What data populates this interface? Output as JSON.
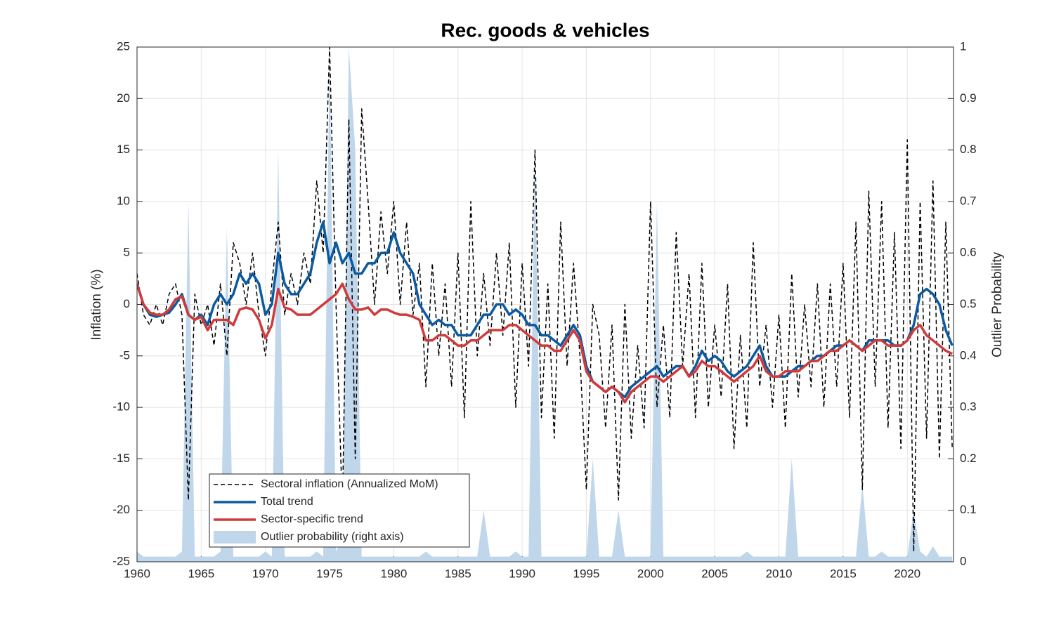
{
  "chart_data": {
    "type": "line",
    "title": "Rec. goods & vehicles",
    "ylabel": "Inflation (%)",
    "y2label": "Outlier Probability",
    "xlim": [
      1960,
      2023.6
    ],
    "xticks": [
      1960,
      1965,
      1970,
      1975,
      1980,
      1985,
      1990,
      1995,
      2000,
      2005,
      2010,
      2015,
      2020
    ],
    "ylim": [
      -25,
      25
    ],
    "yticks": [
      -25,
      -20,
      -15,
      -10,
      -5,
      0,
      5,
      10,
      15,
      20,
      25
    ],
    "y2lim": [
      0,
      1
    ],
    "y2ticks": [
      0,
      0.1,
      0.2,
      0.3,
      0.4,
      0.5,
      0.6,
      0.7,
      0.8,
      0.9,
      1
    ],
    "grid": true,
    "legend": "lower left",
    "x": [
      1960,
      1960.5,
      1961,
      1961.5,
      1962,
      1962.5,
      1963,
      1963.5,
      1964,
      1964.5,
      1965,
      1965.5,
      1966,
      1966.5,
      1967,
      1967.5,
      1968,
      1968.5,
      1969,
      1969.5,
      1970,
      1970.5,
      1971,
      1971.5,
      1972,
      1972.5,
      1973,
      1973.5,
      1974,
      1974.5,
      1975,
      1975.5,
      1976,
      1976.5,
      1977,
      1977.5,
      1978,
      1978.5,
      1979,
      1979.5,
      1980,
      1980.5,
      1981,
      1981.5,
      1982,
      1982.5,
      1983,
      1983.5,
      1984,
      1984.5,
      1985,
      1985.5,
      1986,
      1986.5,
      1987,
      1987.5,
      1988,
      1988.5,
      1989,
      1989.5,
      1990,
      1990.5,
      1991,
      1991.5,
      1992,
      1992.5,
      1993,
      1993.5,
      1994,
      1994.5,
      1995,
      1995.5,
      1996,
      1996.5,
      1997,
      1997.5,
      1998,
      1998.5,
      1999,
      1999.5,
      2000,
      2000.5,
      2001,
      2001.5,
      2002,
      2002.5,
      2003,
      2003.5,
      2004,
      2004.5,
      2005,
      2005.5,
      2006,
      2006.5,
      2007,
      2007.5,
      2008,
      2008.5,
      2009,
      2009.5,
      2010,
      2010.5,
      2011,
      2011.5,
      2012,
      2012.5,
      2013,
      2013.5,
      2014,
      2014.5,
      2015,
      2015.5,
      2016,
      2016.5,
      2017,
      2017.5,
      2018,
      2018.5,
      2019,
      2019.5,
      2020,
      2020.5,
      2021,
      2021.5,
      2022,
      2022.5,
      2023,
      2023.5
    ],
    "series": [
      {
        "name": "Sectoral inflation (Annualized MoM)",
        "color": "#000000",
        "style": "dashed",
        "values": [
          3,
          -1,
          -2,
          0,
          -2,
          1,
          2,
          -1,
          -19,
          1,
          -2,
          0,
          -4,
          2,
          -5,
          6,
          4,
          0,
          5,
          -1,
          -5,
          2,
          8,
          -1,
          3,
          0,
          5,
          2,
          12,
          5,
          25,
          0,
          -20,
          18,
          -15,
          19,
          10,
          0,
          9,
          3,
          10,
          0,
          8,
          -1,
          4,
          -8,
          4,
          -5,
          2,
          -8,
          5,
          -11,
          10,
          -5,
          3,
          -4,
          5,
          -3,
          6,
          -10,
          4,
          -6,
          15,
          -11,
          2,
          -13,
          8,
          -6,
          4,
          -5,
          -18,
          0,
          -3,
          -12,
          -2,
          -19,
          0,
          -13,
          -4,
          -12,
          10,
          -10,
          -2,
          -11,
          7,
          -6,
          3,
          -11,
          4,
          -10,
          -2,
          -9,
          2,
          -14,
          -3,
          -12,
          6,
          -8,
          -2,
          -10,
          -1,
          -12,
          3,
          -9,
          0,
          -8,
          2,
          -10,
          2,
          -8,
          4,
          -11,
          8,
          -18,
          11,
          -8,
          10,
          -12,
          7,
          -14,
          16,
          -24,
          10,
          -13,
          12,
          -15,
          8,
          -14
        ]
      },
      {
        "name": "Total trend",
        "color": "#0b5aa0",
        "style": "solid",
        "values": [
          2,
          0,
          -1,
          -1.2,
          -1,
          -0.8,
          0,
          1,
          -1,
          -1.5,
          -1,
          -2,
          0,
          1,
          0,
          1,
          3,
          2,
          3,
          2,
          -1,
          0,
          5,
          2,
          1,
          1,
          2,
          3,
          6,
          8,
          4,
          6,
          4,
          5,
          3,
          3,
          4,
          4,
          5,
          5,
          7,
          5,
          4,
          3,
          0,
          -1,
          -2,
          -1.5,
          -2,
          -2,
          -3,
          -3,
          -3,
          -2,
          -1,
          -1,
          0,
          0,
          -1,
          -0.5,
          -1,
          -2,
          -2,
          -3,
          -3,
          -3.5,
          -4,
          -3,
          -2,
          -3,
          -6,
          -7.5,
          -8,
          -8.5,
          -8,
          -8.5,
          -9,
          -8,
          -7.5,
          -7,
          -6.5,
          -6,
          -7,
          -6.5,
          -6,
          -6,
          -7,
          -6,
          -4.5,
          -5.5,
          -5,
          -5.5,
          -6.5,
          -7,
          -6.5,
          -6,
          -5,
          -4,
          -6,
          -7,
          -7,
          -7,
          -6.5,
          -6,
          -6,
          -5.5,
          -5,
          -5,
          -4.5,
          -4,
          -4,
          -3.5,
          -4,
          -4.5,
          -3.5,
          -3.5,
          -3.5,
          -3.5,
          -4,
          -4,
          -3.5,
          -2,
          1,
          1.5,
          1,
          0,
          -2.5,
          -4
        ]
      },
      {
        "name": "Sector-specific trend",
        "color": "#d03a3a",
        "style": "solid",
        "values": [
          2,
          0,
          -0.8,
          -1,
          -1,
          -0.5,
          0.5,
          0.8,
          -1,
          -1.5,
          -1.2,
          -2.5,
          -1.5,
          -1.5,
          -1.5,
          -2,
          -0.5,
          -0.3,
          -0.5,
          -1.5,
          -3.3,
          -2,
          1.5,
          -0.3,
          -0.5,
          -1,
          -1,
          -1,
          -0.5,
          0,
          0.5,
          1,
          2,
          0.5,
          -0.5,
          -0.5,
          -0.3,
          -1,
          -0.5,
          -0.5,
          -0.8,
          -1,
          -1,
          -1.2,
          -1.5,
          -3.5,
          -3.5,
          -3,
          -3,
          -3.5,
          -4,
          -4,
          -3.5,
          -3.5,
          -3,
          -2.5,
          -2.5,
          -2.5,
          -2,
          -2,
          -2.5,
          -3,
          -3.5,
          -4,
          -4,
          -4.5,
          -4.5,
          -3.5,
          -2.5,
          -3.5,
          -6.5,
          -7.5,
          -8,
          -8.5,
          -8,
          -8.5,
          -9.5,
          -8.5,
          -8,
          -7.5,
          -7,
          -7,
          -7.5,
          -7,
          -6.5,
          -6,
          -7,
          -6.5,
          -5.5,
          -6,
          -6,
          -6.5,
          -7,
          -7.5,
          -7,
          -6.5,
          -6,
          -5,
          -6.5,
          -7,
          -7,
          -6.5,
          -6.5,
          -6.5,
          -6,
          -5.5,
          -5.5,
          -5,
          -4.5,
          -4.5,
          -4,
          -3.5,
          -4,
          -4.5,
          -4,
          -3.5,
          -3.5,
          -4,
          -4,
          -4,
          -3.5,
          -2.5,
          -2,
          -3,
          -3.5,
          -4,
          -4.5,
          -4.8
        ]
      },
      {
        "name": "Outlier probability (right axis)",
        "color": "#c0d6ea",
        "style": "area",
        "axis": "y2",
        "values": [
          0.02,
          0.01,
          0.01,
          0.01,
          0.01,
          0.01,
          0.01,
          0.02,
          0.7,
          0.01,
          0.01,
          0.01,
          0.01,
          0.02,
          0.65,
          0.01,
          0.01,
          0.01,
          0.01,
          0.01,
          0.02,
          0.01,
          0.8,
          0.01,
          0.01,
          0.01,
          0.01,
          0.01,
          0.02,
          0.01,
          1,
          0.02,
          0.05,
          1,
          0.8,
          0.01,
          0.01,
          0.01,
          0.01,
          0.01,
          0.01,
          0.01,
          0.01,
          0.01,
          0.01,
          0.02,
          0.01,
          0.01,
          0.01,
          0.01,
          0.01,
          0.01,
          0.01,
          0.01,
          0.1,
          0.01,
          0.01,
          0.01,
          0.01,
          0.02,
          0.01,
          0.01,
          0.8,
          0.01,
          0.01,
          0.01,
          0.01,
          0.01,
          0.01,
          0.01,
          0.01,
          0.2,
          0.01,
          0.01,
          0.01,
          0.1,
          0.01,
          0.01,
          0.01,
          0.01,
          0.01,
          0.7,
          0.01,
          0.01,
          0.01,
          0.01,
          0.01,
          0.01,
          0.01,
          0.01,
          0.01,
          0.01,
          0.01,
          0.01,
          0.01,
          0.02,
          0.01,
          0.01,
          0.01,
          0.01,
          0.01,
          0.01,
          0.2,
          0.01,
          0.01,
          0.01,
          0.01,
          0.01,
          0.01,
          0.01,
          0.01,
          0.01,
          0.01,
          0.15,
          0.01,
          0.01,
          0.02,
          0.01,
          0.01,
          0.01,
          0.01,
          0.1,
          0.02,
          0.01,
          0.03,
          0.01,
          0.01,
          0.01
        ]
      }
    ]
  }
}
